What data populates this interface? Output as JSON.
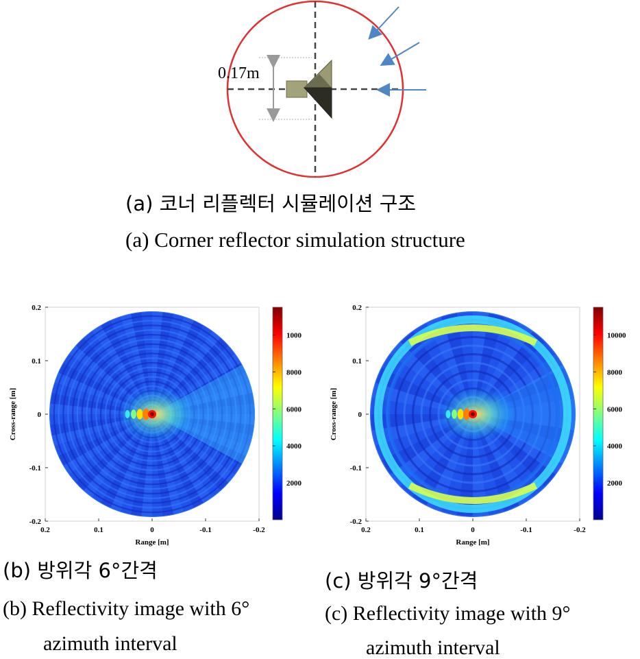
{
  "figure_a": {
    "dimension_label": "0.17m",
    "caption_ko": "(a) 코너 리플렉터 시뮬레이션 구조",
    "caption_en": "(a) Corner reflector simulation structure",
    "circle_color": "#e03030",
    "arrow_color": "#4f86c6",
    "reflector_color": "#a3a37a"
  },
  "chart_data": [
    {
      "type": "heatmap",
      "id": "b",
      "description": "polar reflectivity image, 6° azimuth interval",
      "xlabel": "Range [m]",
      "ylabel": "Cross-range [m]",
      "x_ticks": [
        "0.2",
        "0.1",
        "0",
        "-0.1",
        "-0.2"
      ],
      "y_ticks": [
        "0.2",
        "0.1",
        "0",
        "-0.1",
        "-0.2"
      ],
      "xlim": [
        0.2,
        -0.2
      ],
      "ylim": [
        -0.2,
        0.2
      ],
      "colorbar_ticks": [
        "10000",
        "8000",
        "6000",
        "4000",
        "2000"
      ],
      "colorbar_range": [
        0,
        11500
      ],
      "peak": {
        "x": 0,
        "y": 0,
        "value": 11000
      },
      "caption_ko": "(b) 방위각 6°간격",
      "caption_en_line1": "(b) Reflectivity image with 6°",
      "caption_en_line2": "azimuth interval"
    },
    {
      "type": "heatmap",
      "id": "c",
      "description": "polar reflectivity image, 9° azimuth interval",
      "xlabel": "Range [m]",
      "ylabel": "Cross-range [m]",
      "x_ticks": [
        "0.2",
        "0.1",
        "0",
        "-0.1",
        "-0.2"
      ],
      "y_ticks": [
        "0.2",
        "0.1",
        "0",
        "-0.1",
        "-0.2"
      ],
      "xlim": [
        0.2,
        -0.2
      ],
      "ylim": [
        -0.2,
        0.2
      ],
      "colorbar_ticks": [
        "10000",
        "8000",
        "6000",
        "4000",
        "2000"
      ],
      "colorbar_range": [
        0,
        11500
      ],
      "peak": {
        "x": 0,
        "y": 0,
        "value": 11000
      },
      "caption_ko": "(c) 방위각 9°간격",
      "caption_en_line1": "(c) Reflectivity image with 9°",
      "caption_en_line2": "azimuth interval"
    }
  ]
}
